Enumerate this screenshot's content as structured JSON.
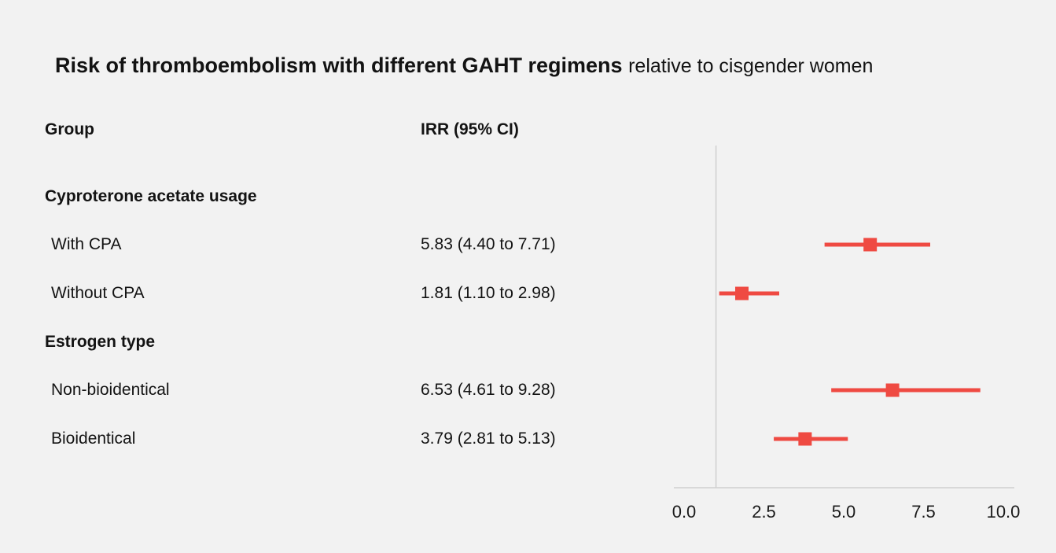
{
  "title": {
    "main": "Risk of thromboembolism with different GAHT regimens",
    "suffix": "relative to cisgender women"
  },
  "columns": {
    "group": "Group",
    "irr": "IRR (95% CI)"
  },
  "chart_data": {
    "type": "scatter",
    "subtype": "forest-plot",
    "title": "Risk of thromboembolism with different GAHT regimens relative to cisgender women",
    "xlabel": "",
    "ylabel": "",
    "xlim": [
      0,
      10
    ],
    "ticks": [
      "0.0",
      "2.5",
      "5.0",
      "7.5",
      "10.0"
    ],
    "reference_line": 1.0,
    "marker_color": "#ef4a42",
    "axis_color": "#cfcfcf",
    "groups": [
      {
        "header": "Cyproterone acetate usage",
        "rows": [
          {
            "label": "With CPA",
            "irr_text": "5.83 (4.40 to 7.71)",
            "est": 5.83,
            "lo": 4.4,
            "hi": 7.71
          },
          {
            "label": "Without CPA",
            "irr_text": "1.81 (1.10 to 2.98)",
            "est": 1.81,
            "lo": 1.1,
            "hi": 2.98
          }
        ]
      },
      {
        "header": "Estrogen type",
        "rows": [
          {
            "label": "Non-bioidentical",
            "irr_text": "6.53 (4.61 to 9.28)",
            "est": 6.53,
            "lo": 4.61,
            "hi": 9.28
          },
          {
            "label": "Bioidentical",
            "irr_text": "3.79 (2.81 to 5.13)",
            "est": 3.79,
            "lo": 2.81,
            "hi": 5.13
          }
        ]
      }
    ]
  }
}
